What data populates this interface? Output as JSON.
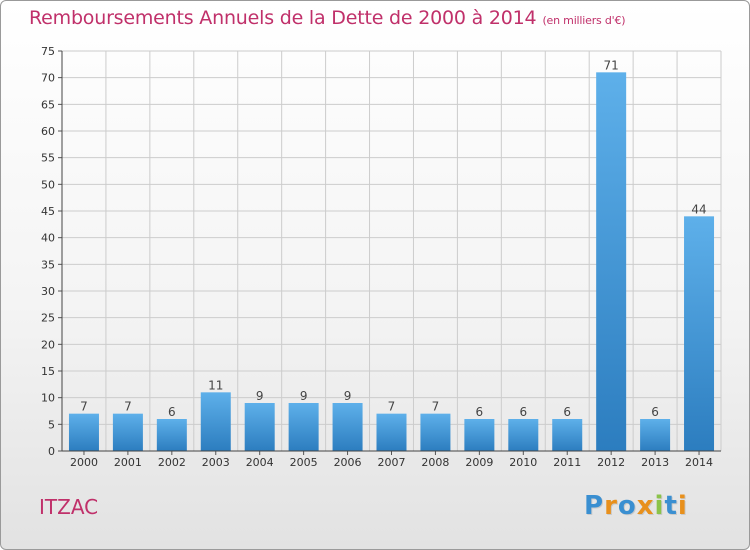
{
  "title": "Remboursements Annuels de la Dette de 2000 à 2014",
  "unit_note": "(en milliers d'€)",
  "commune": "ITZAC",
  "logo": {
    "letters": [
      "P",
      "r",
      "o",
      "x",
      "i",
      "t",
      "i"
    ],
    "colors": [
      "#3a8fd1",
      "#e8901c",
      "#3a8fd1",
      "#e8901c",
      "#8bc34a",
      "#3a8fd1",
      "#e8901c"
    ]
  },
  "colors": {
    "bar_top": "#5eb0ea",
    "bar_bottom": "#2c7dbf",
    "text": "#c0306a",
    "grid": "#cccccc"
  },
  "chart_data": {
    "type": "bar",
    "categories": [
      "2000",
      "2001",
      "2002",
      "2003",
      "2004",
      "2005",
      "2006",
      "2007",
      "2008",
      "2009",
      "2010",
      "2011",
      "2012",
      "2013",
      "2014"
    ],
    "values": [
      7,
      7,
      6,
      11,
      9,
      9,
      9,
      7,
      7,
      6,
      6,
      6,
      71,
      6,
      44
    ],
    "data_labels": [
      "7",
      "7",
      "6",
      "11",
      "9",
      "9",
      "9",
      "7",
      "7",
      "6",
      "6",
      "6",
      "71",
      "6",
      "44"
    ],
    "yticks": [
      0,
      5,
      10,
      15,
      20,
      25,
      30,
      35,
      40,
      45,
      50,
      55,
      60,
      65,
      70,
      75
    ],
    "ylim": [
      0,
      75
    ],
    "grid": true,
    "legend": false
  }
}
